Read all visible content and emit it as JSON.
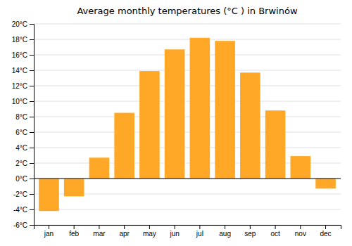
{
  "chart_data": {
    "type": "bar",
    "title": "Average monthly temperatures (°C ) in Brwinów",
    "categories": [
      "jan",
      "feb",
      "mar",
      "apr",
      "may",
      "jun",
      "jul",
      "aug",
      "sep",
      "oct",
      "nov",
      "dec"
    ],
    "values": [
      -4.2,
      -2.3,
      2.7,
      8.5,
      13.9,
      16.7,
      18.2,
      17.8,
      13.7,
      8.8,
      2.9,
      -1.3
    ],
    "color": "#FFA726",
    "ylim": [
      -6,
      20
    ],
    "yticks": [
      {
        "value": -6,
        "label": "-6°C"
      },
      {
        "value": -4,
        "label": "-4°C"
      },
      {
        "value": -2,
        "label": "-2°C"
      },
      {
        "value": 0,
        "label": "0°C"
      },
      {
        "value": 2,
        "label": "2°C"
      },
      {
        "value": 4,
        "label": "4°C"
      },
      {
        "value": 6,
        "label": "6°C"
      },
      {
        "value": 8,
        "label": "8°C"
      },
      {
        "value": 10,
        "label": "10°C"
      },
      {
        "value": 12,
        "label": "12°C"
      },
      {
        "value": 14,
        "label": "14°C"
      },
      {
        "value": 16,
        "label": "16°C"
      },
      {
        "value": 18,
        "label": "18°C"
      },
      {
        "value": 20,
        "label": "20°C"
      }
    ],
    "grid": true
  }
}
